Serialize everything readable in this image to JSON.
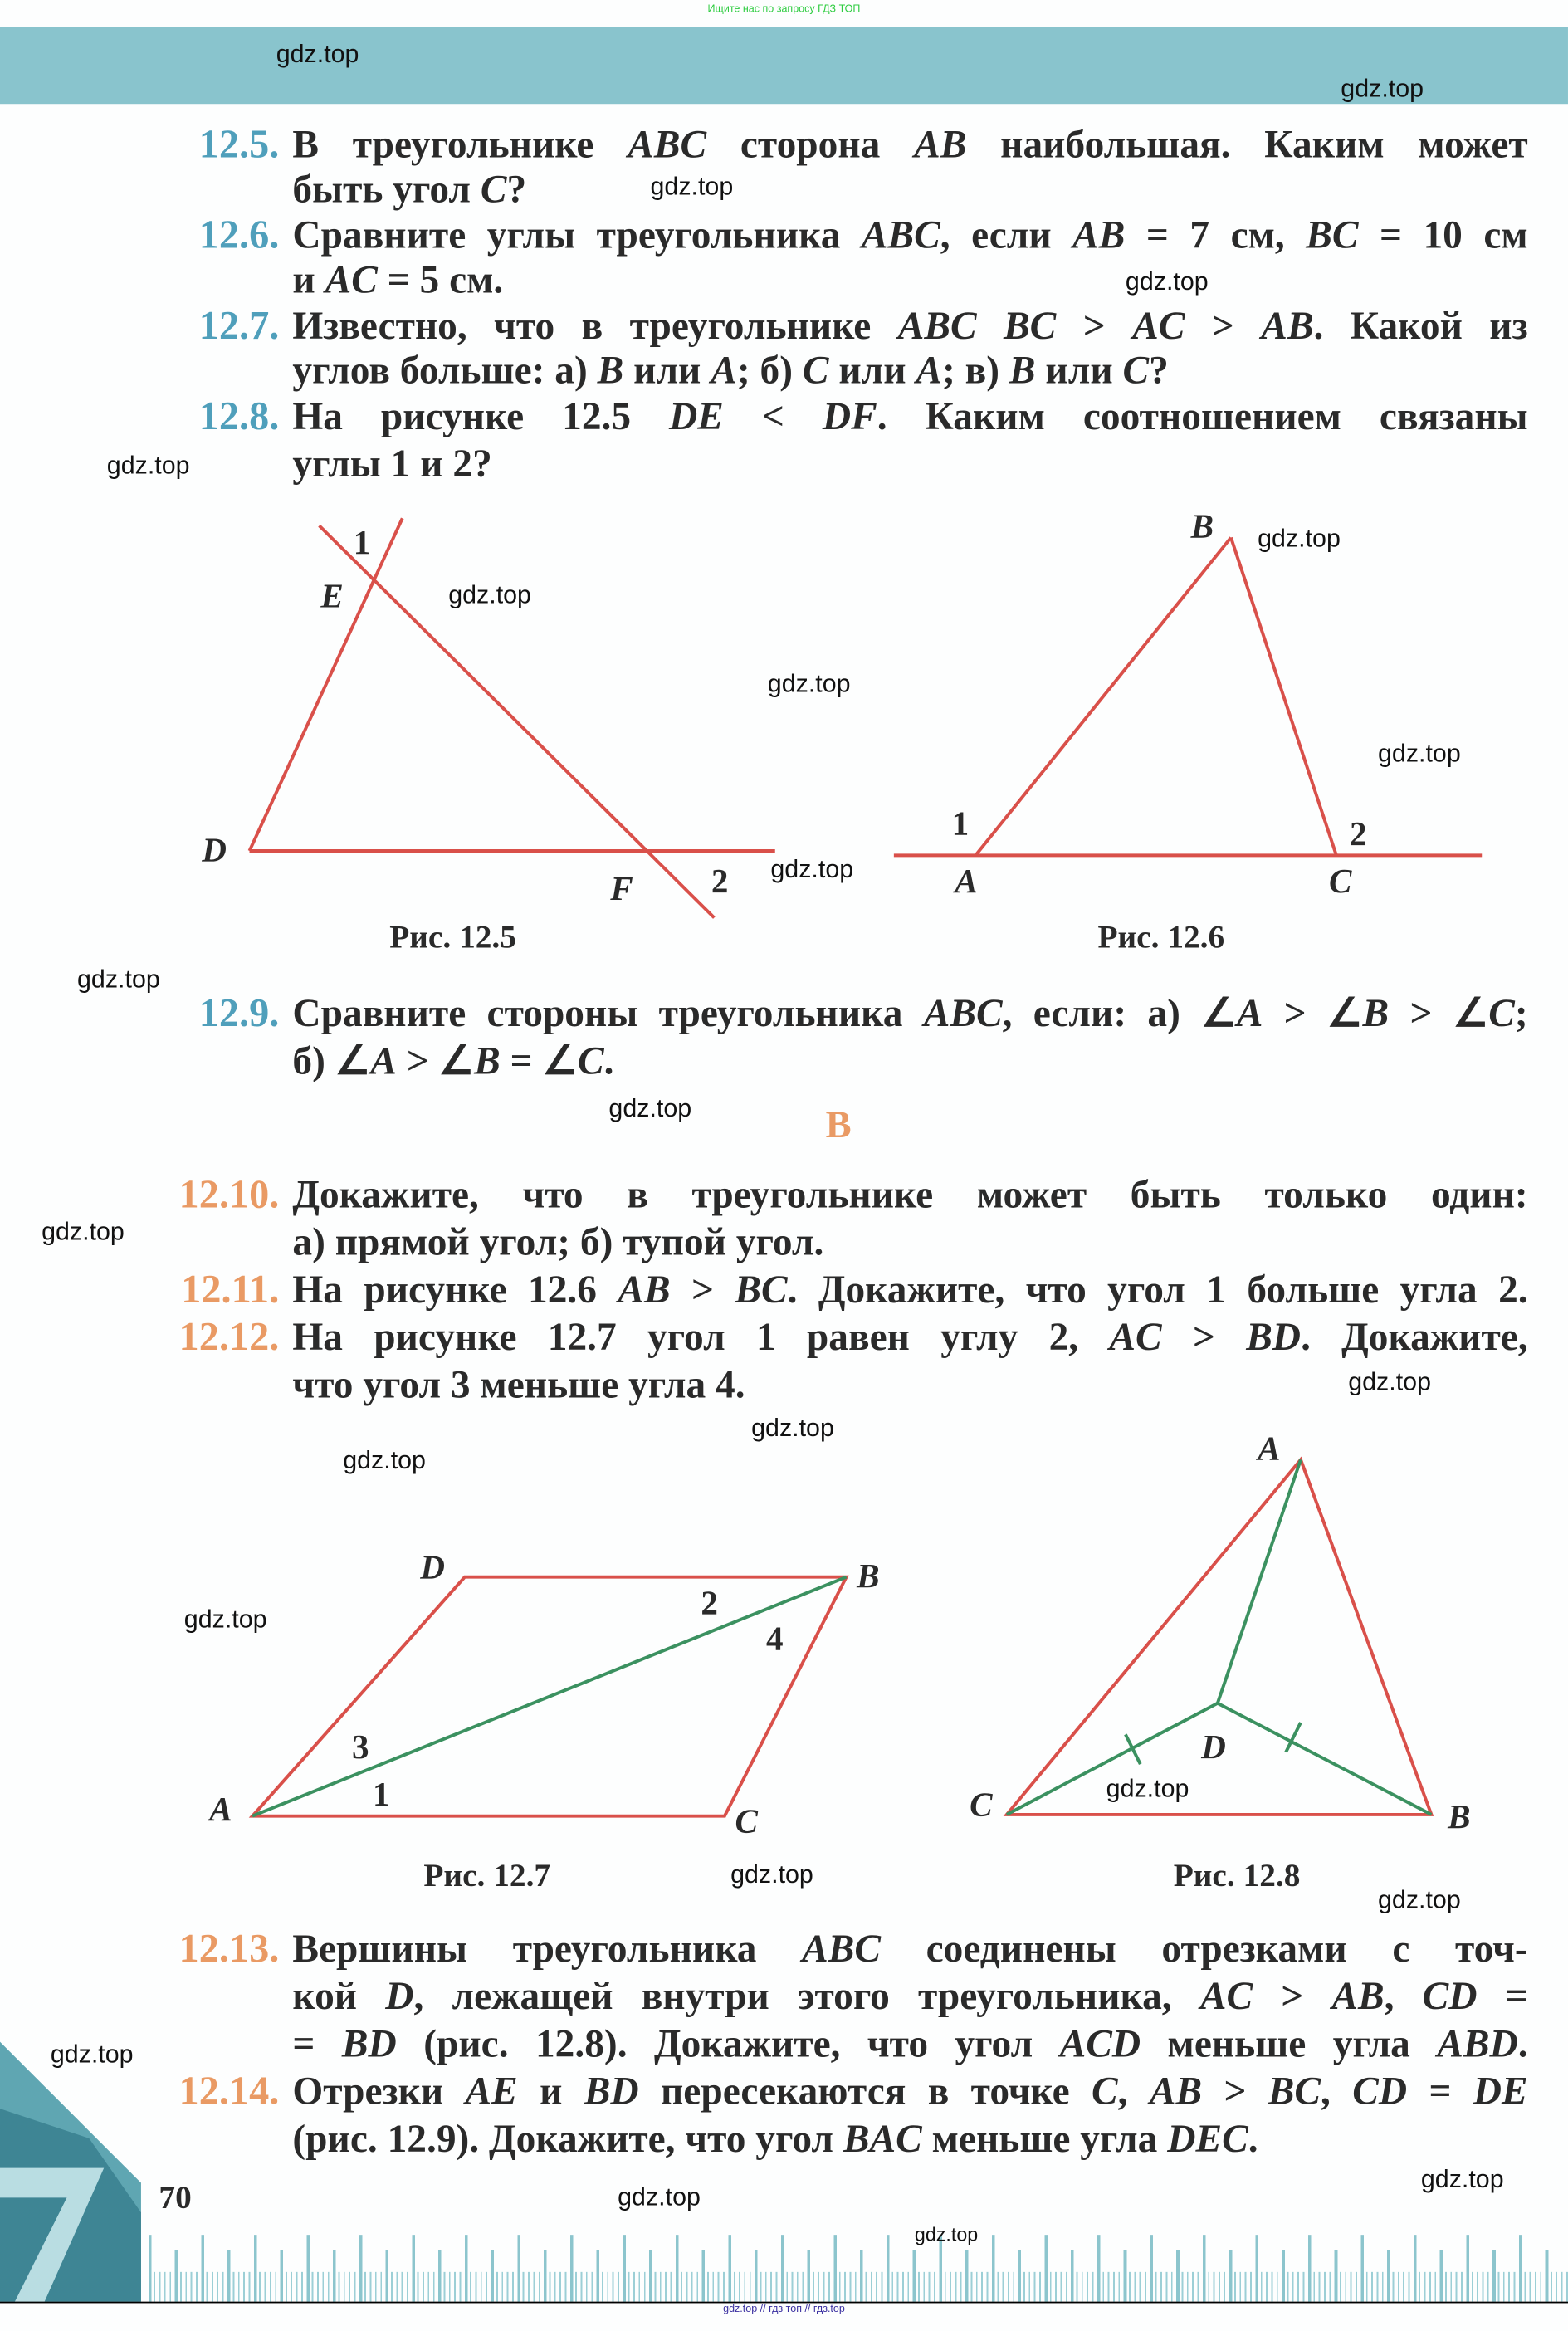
{
  "top_note": "Ищите нас по запросу ГДЗ ТОП",
  "bottom_note": "gdz.top // гдз топ // гдз.top",
  "watermark": "gdz.top",
  "colors": {
    "banner": "#89c4cd",
    "number_level_a": "#4f9fbb",
    "number_level_b": "#e99a64",
    "figure_red": "#d9504a",
    "figure_green": "#3b9160"
  },
  "problems": [
    {
      "number": "12.5.",
      "lines": [
        "В треугольнике ABC сторона AB наибольшая. Каким может",
        "быть угол C?"
      ]
    },
    {
      "number": "12.6.",
      "lines": [
        "Сравните углы треугольника ABC, если AB = 7 см, BC = 10 см",
        "и AC = 5 см."
      ]
    },
    {
      "number": "12.7.",
      "lines": [
        "Известно, что в треугольнике ABC BC > AC > AB. Какой из",
        "углов больше: а) B или A; б) C или A; в) B или C?"
      ]
    },
    {
      "number": "12.8.",
      "lines": [
        "На рисунке 12.5 DE < DF. Каким соотношением связаны",
        "углы 1 и 2?"
      ]
    },
    {
      "number": "12.9.",
      "lines": [
        "Сравните стороны треугольника ABC, если: а) ∠A > ∠B > ∠C;",
        "б) ∠A > ∠B = ∠C."
      ]
    },
    {
      "number": "12.10.",
      "lines": [
        "Докажите, что в треугольнике может быть только один:",
        "а) прямой угол; б) тупой угол."
      ]
    },
    {
      "number": "12.11.",
      "lines": [
        "На рисунке 12.6 AB > BC. Докажите, что угол 1 больше угла 2."
      ]
    },
    {
      "number": "12.12.",
      "lines": [
        "На рисунке 12.7 угол 1 равен углу 2, AC > BD. Докажите,",
        "что угол 3 меньше угла 4."
      ]
    },
    {
      "number": "12.13.",
      "lines": [
        "Вершины треугольника ABC соединены отрезками с точ-",
        "кой D, лежащей внутри этого треугольника, AC > AB, CD =",
        "= BD (рис. 12.8). Докажите, что угол ACD меньше угла ABD."
      ]
    },
    {
      "number": "12.14.",
      "lines": [
        "Отрезки AE и BD пересекаются в точке C, AB > BC, CD = DE",
        "(рис. 12.9). Докажите, что угол BAC меньше угла DEC."
      ]
    }
  ],
  "section_header": "В",
  "figures": {
    "fig_12_5": {
      "caption": "Рис. 12.5",
      "labels": {
        "p1": "1",
        "e": "E",
        "d": "D",
        "f": "F",
        "p2": "2"
      }
    },
    "fig_12_6": {
      "caption": "Рис. 12.6",
      "labels": {
        "b": "B",
        "p1": "1",
        "a": "A",
        "p2": "2",
        "c": "C"
      }
    },
    "fig_12_7": {
      "caption": "Рис. 12.7",
      "labels": {
        "d": "D",
        "b": "B",
        "p2": "2",
        "p4": "4",
        "p3": "3",
        "p1": "1",
        "a": "A",
        "c": "C"
      }
    },
    "fig_12_8": {
      "caption": "Рис. 12.8",
      "labels": {
        "a": "A",
        "d": "D",
        "c": "C",
        "b": "B"
      }
    }
  },
  "page_number": "70"
}
